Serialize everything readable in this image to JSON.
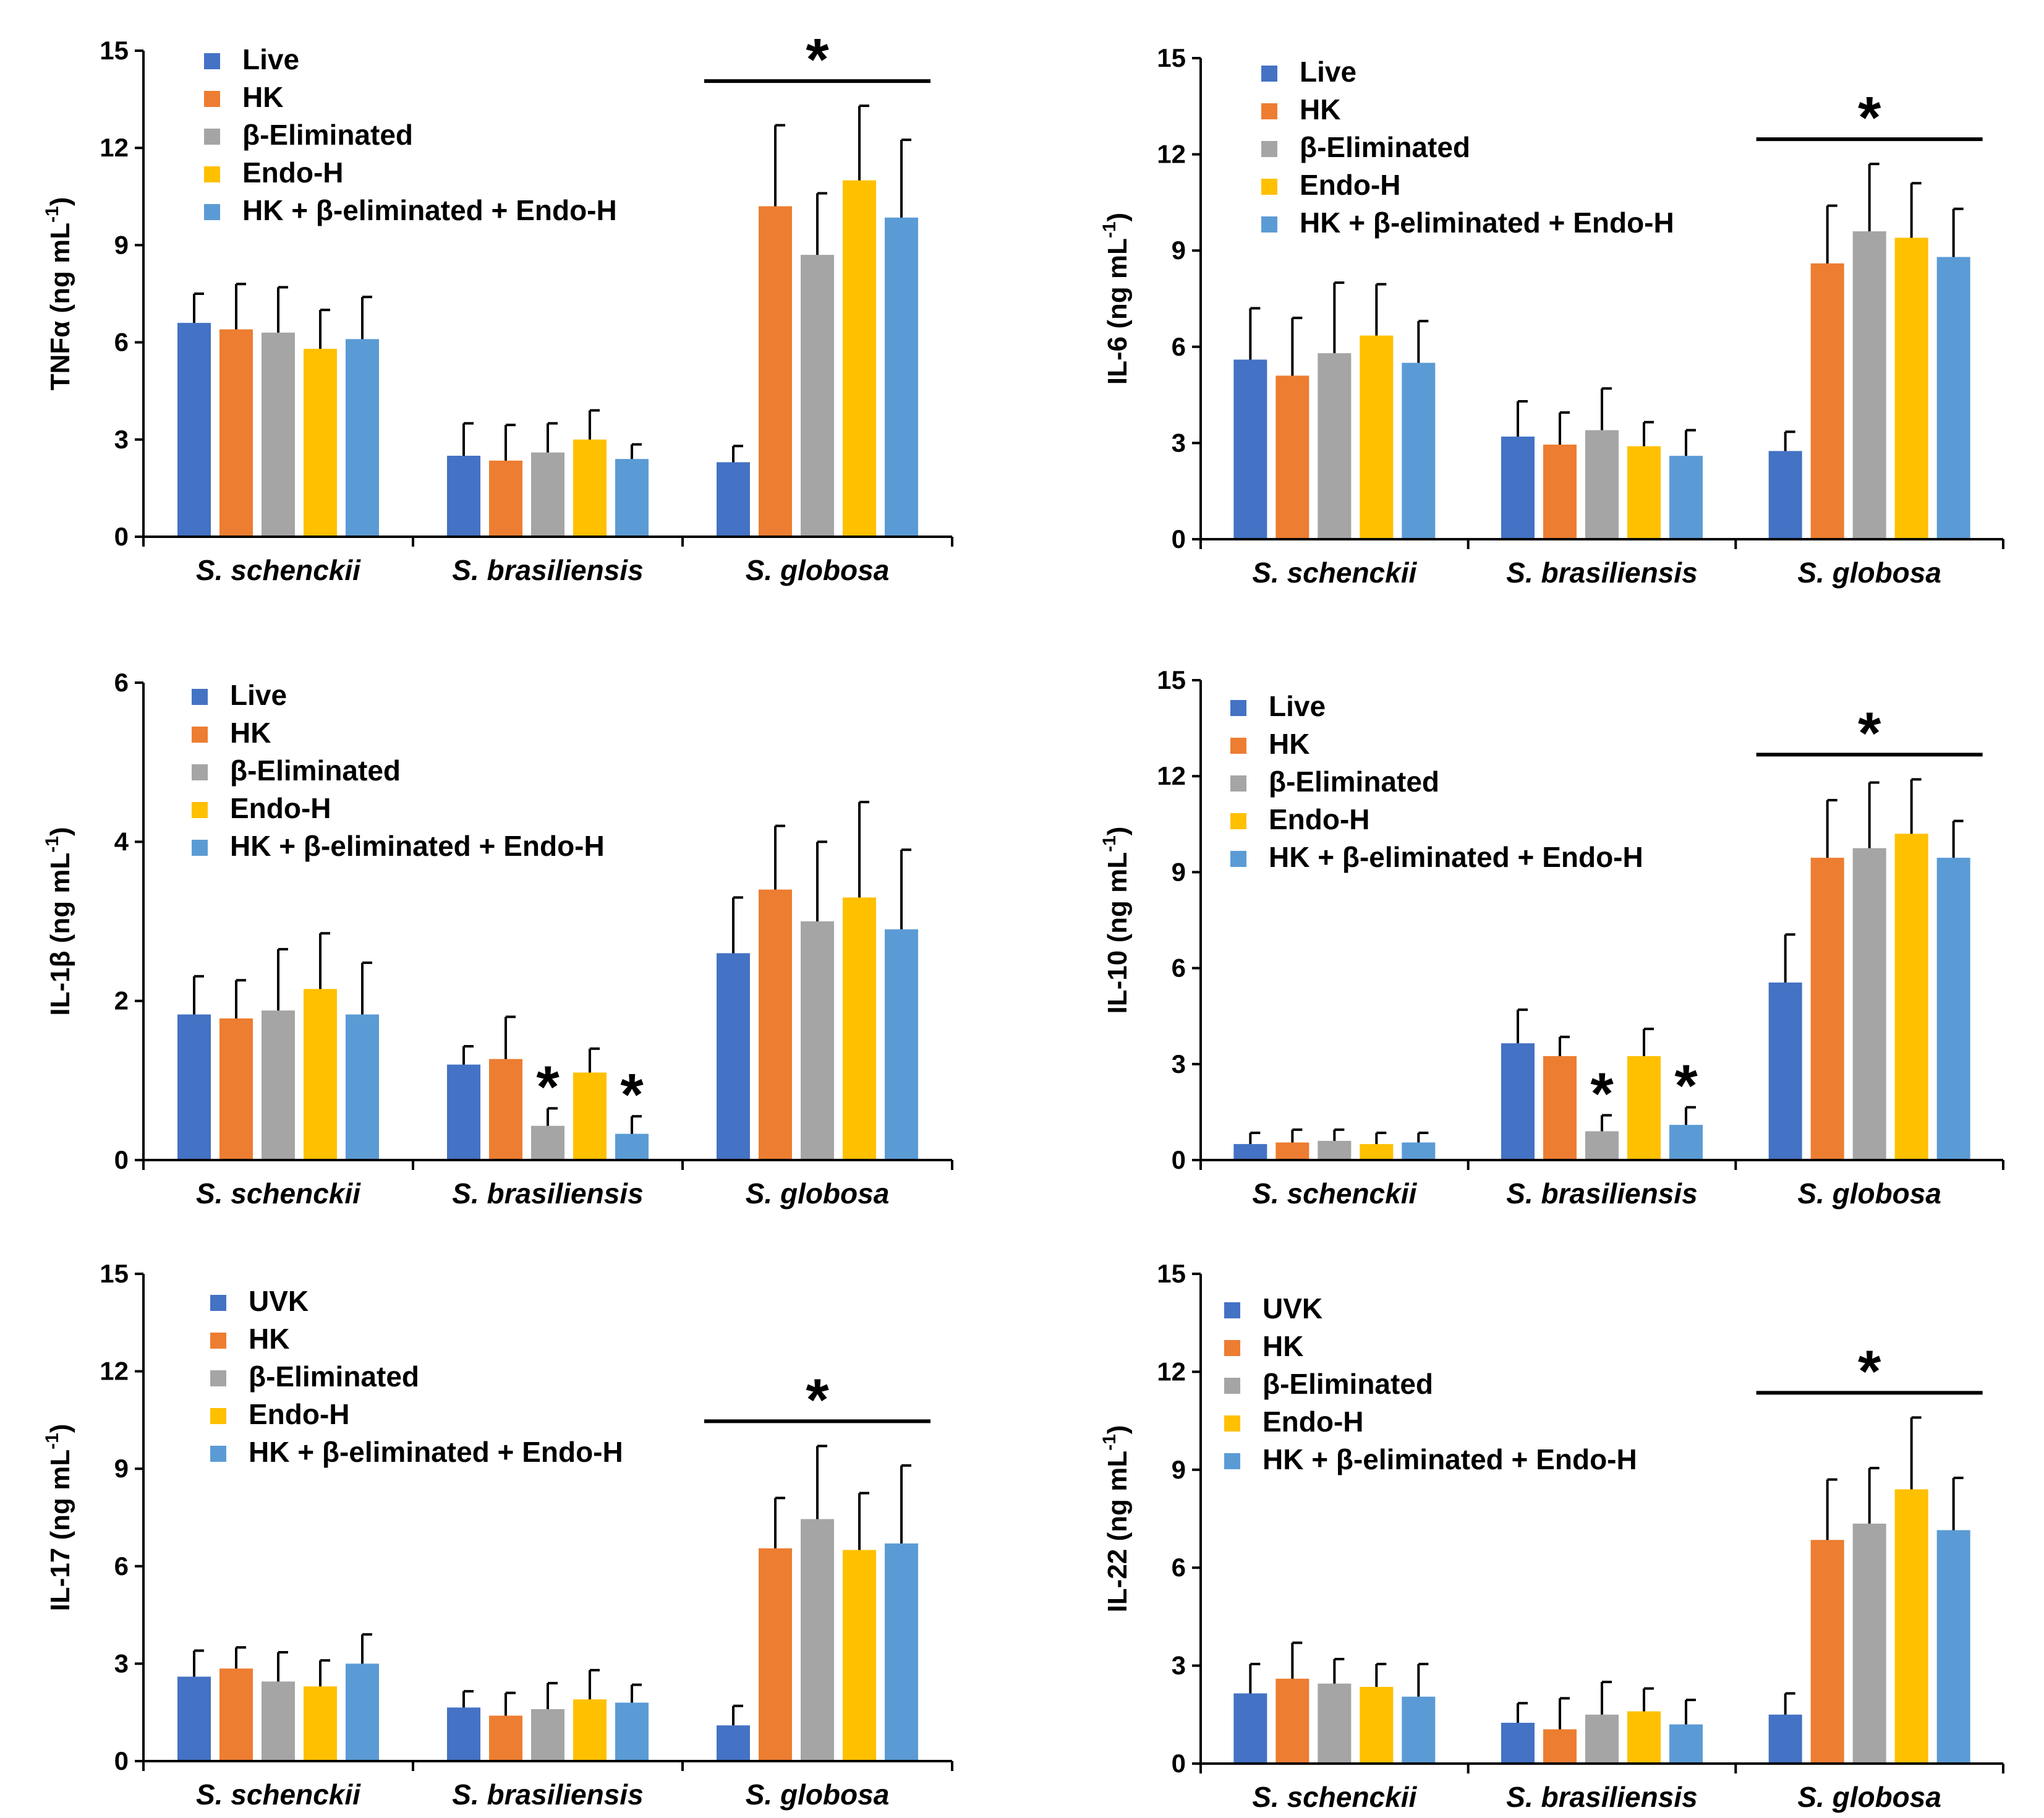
{
  "chart_data": [
    {
      "type": "bar",
      "ylabel": "TNFα  (ng mL-1)",
      "ylabel_main": "TNFα  (ng mL",
      "ylabel_sup": "-1",
      "ylabel_end": ")",
      "ylim": [
        0,
        15
      ],
      "yticks": [
        0,
        3,
        6,
        9,
        12,
        15
      ],
      "categories": [
        "S. schenckii",
        "S. brasiliensis",
        "S. globosa"
      ],
      "series": [
        {
          "name": "Live",
          "color": "#4472C4",
          "values": [
            6.6,
            2.5,
            2.3
          ],
          "errors": [
            0.9,
            1.0,
            0.5
          ]
        },
        {
          "name": "HK",
          "color": "#ED7D31",
          "values": [
            6.4,
            2.35,
            10.2
          ],
          "errors": [
            1.4,
            1.1,
            2.5
          ]
        },
        {
          "name": "β-Eliminated",
          "color": "#A5A5A5",
          "values": [
            6.3,
            2.6,
            8.7
          ],
          "errors": [
            1.4,
            0.9,
            1.9
          ]
        },
        {
          "name": "Endo-H",
          "color": "#FFC000",
          "values": [
            5.8,
            3.0,
            11.0
          ],
          "errors": [
            1.2,
            0.9,
            2.3
          ]
        },
        {
          "name": "HK + β-eliminated + Endo-H",
          "color": "#5B9BD5",
          "values": [
            6.1,
            2.4,
            9.85
          ],
          "errors": [
            1.3,
            0.45,
            2.4
          ]
        }
      ],
      "significance": [
        {
          "type": "bracket",
          "category": 2,
          "label": "*"
        }
      ]
    },
    {
      "type": "bar",
      "ylabel": "IL-6 (ng mL-1)",
      "ylabel_main": "IL-6 (ng mL",
      "ylabel_sup": "-1",
      "ylabel_end": ")",
      "ylim": [
        0,
        15
      ],
      "yticks": [
        0,
        3,
        6,
        9,
        12,
        15
      ],
      "categories": [
        "S. schenckii",
        "S. brasiliensis",
        "S. globosa"
      ],
      "series": [
        {
          "name": "Live",
          "color": "#4472C4",
          "values": [
            5.6,
            3.2,
            2.75
          ],
          "errors": [
            1.6,
            1.1,
            0.6
          ]
        },
        {
          "name": "HK",
          "color": "#ED7D31",
          "values": [
            5.1,
            2.95,
            8.6
          ],
          "errors": [
            1.8,
            1.0,
            1.8
          ]
        },
        {
          "name": "β-Eliminated",
          "color": "#A5A5A5",
          "values": [
            5.8,
            3.4,
            9.6
          ],
          "errors": [
            2.2,
            1.3,
            2.1
          ]
        },
        {
          "name": "Endo-H",
          "color": "#FFC000",
          "values": [
            6.35,
            2.9,
            9.4
          ],
          "errors": [
            1.6,
            0.75,
            1.7
          ]
        },
        {
          "name": "HK + β-eliminated + Endo-H",
          "color": "#5B9BD5",
          "values": [
            5.5,
            2.6,
            8.8
          ],
          "errors": [
            1.3,
            0.8,
            1.5
          ]
        }
      ],
      "significance": [
        {
          "type": "bracket",
          "category": 2,
          "label": "*"
        }
      ]
    },
    {
      "type": "bar",
      "ylabel": "IL-1β (ng mL-1)",
      "ylabel_main": "IL-1β (ng mL",
      "ylabel_sup": "-1",
      "ylabel_end": ")",
      "ylim": [
        0,
        6
      ],
      "yticks": [
        0,
        2,
        4,
        6
      ],
      "categories": [
        "S. schenckii",
        "S. brasiliensis",
        "S. globosa"
      ],
      "series": [
        {
          "name": "Live",
          "color": "#4472C4",
          "values": [
            1.83,
            1.2,
            2.6
          ],
          "errors": [
            0.48,
            0.23,
            0.7
          ]
        },
        {
          "name": "HK",
          "color": "#ED7D31",
          "values": [
            1.78,
            1.27,
            3.4
          ],
          "errors": [
            0.48,
            0.53,
            0.8
          ]
        },
        {
          "name": "β-Eliminated",
          "color": "#A5A5A5",
          "values": [
            1.88,
            0.43,
            3.0
          ],
          "errors": [
            0.77,
            0.22,
            1.0
          ]
        },
        {
          "name": "Endo-H",
          "color": "#FFC000",
          "values": [
            2.15,
            1.1,
            3.3
          ],
          "errors": [
            0.7,
            0.3,
            1.2
          ]
        },
        {
          "name": "HK + β-eliminated + Endo-H",
          "color": "#5B9BD5",
          "values": [
            1.83,
            0.33,
            2.9
          ],
          "errors": [
            0.65,
            0.22,
            1.0
          ]
        }
      ],
      "significance": [
        {
          "type": "bar_star",
          "category": 1,
          "series": 2,
          "label": "*"
        },
        {
          "type": "bar_star",
          "category": 1,
          "series": 4,
          "label": "*"
        }
      ]
    },
    {
      "type": "bar",
      "ylabel": "IL-10 (ng mL-1)",
      "ylabel_main": "IL-10 (ng mL",
      "ylabel_sup": "-1",
      "ylabel_end": ")",
      "ylim": [
        0,
        15
      ],
      "yticks": [
        0,
        3,
        6,
        9,
        12,
        15
      ],
      "categories": [
        "S. schenckii",
        "S. brasiliensis",
        "S. globosa"
      ],
      "series": [
        {
          "name": "Live",
          "color": "#4472C4",
          "values": [
            0.5,
            3.65,
            5.55
          ],
          "errors": [
            0.35,
            1.05,
            1.5
          ]
        },
        {
          "name": "HK",
          "color": "#ED7D31",
          "values": [
            0.55,
            3.25,
            9.45
          ],
          "errors": [
            0.4,
            0.6,
            1.8
          ]
        },
        {
          "name": "β-Eliminated",
          "color": "#A5A5A5",
          "values": [
            0.6,
            0.9,
            9.75
          ],
          "errors": [
            0.35,
            0.5,
            2.05
          ]
        },
        {
          "name": "Endo-H",
          "color": "#FFC000",
          "values": [
            0.5,
            3.25,
            10.2
          ],
          "errors": [
            0.35,
            0.85,
            1.7
          ]
        },
        {
          "name": "HK + β-eliminated + Endo-H",
          "color": "#5B9BD5",
          "values": [
            0.55,
            1.1,
            9.45
          ],
          "errors": [
            0.3,
            0.55,
            1.15
          ]
        }
      ],
      "significance": [
        {
          "type": "bar_star",
          "category": 1,
          "series": 2,
          "label": "*"
        },
        {
          "type": "bar_star",
          "category": 1,
          "series": 4,
          "label": "*"
        },
        {
          "type": "bracket",
          "category": 2,
          "label": "*"
        }
      ]
    },
    {
      "type": "bar",
      "ylabel": "IL-17 (ng mL-1)",
      "ylabel_main": "IL-17 (ng mL",
      "ylabel_sup": "-1",
      "ylabel_end": ")",
      "ylim": [
        0,
        15
      ],
      "yticks": [
        0,
        3,
        6,
        9,
        12,
        15
      ],
      "categories": [
        "S. schenckii",
        "S. brasiliensis",
        "S. globosa"
      ],
      "series": [
        {
          "name": "UVK",
          "color": "#4472C4",
          "values": [
            2.6,
            1.65,
            1.1
          ],
          "errors": [
            0.8,
            0.5,
            0.6
          ]
        },
        {
          "name": "HK",
          "color": "#ED7D31",
          "values": [
            2.85,
            1.4,
            6.55
          ],
          "errors": [
            0.65,
            0.7,
            1.55
          ]
        },
        {
          "name": "β-Eliminated",
          "color": "#A5A5A5",
          "values": [
            2.45,
            1.6,
            7.45
          ],
          "errors": [
            0.9,
            0.8,
            2.25
          ]
        },
        {
          "name": "Endo-H",
          "color": "#FFC000",
          "values": [
            2.3,
            1.9,
            6.5
          ],
          "errors": [
            0.8,
            0.9,
            1.75
          ]
        },
        {
          "name": "HK + β-eliminated + Endo-H",
          "color": "#5B9BD5",
          "values": [
            3.0,
            1.8,
            6.7
          ],
          "errors": [
            0.9,
            0.55,
            2.4
          ]
        }
      ],
      "significance": [
        {
          "type": "bracket",
          "category": 2,
          "label": "*"
        }
      ]
    },
    {
      "type": "bar",
      "ylabel": "IL-22 (ng mL-1)",
      "ylabel_main": "IL-22 (ng mL",
      "ylabel_sup": "-1",
      "ylabel_end": ")",
      "ylim": [
        0,
        15
      ],
      "yticks": [
        0,
        3,
        6,
        9,
        12,
        15
      ],
      "categories": [
        "S. schenckii",
        "S. brasiliensis",
        "S. globosa"
      ],
      "series": [
        {
          "name": "UVK",
          "color": "#4472C4",
          "values": [
            2.15,
            1.25,
            1.5
          ],
          "errors": [
            0.9,
            0.6,
            0.65
          ]
        },
        {
          "name": "HK",
          "color": "#ED7D31",
          "values": [
            2.6,
            1.05,
            6.85
          ],
          "errors": [
            1.1,
            0.95,
            1.85
          ]
        },
        {
          "name": "β-Eliminated",
          "color": "#A5A5A5",
          "values": [
            2.45,
            1.5,
            7.35
          ],
          "errors": [
            0.75,
            1.0,
            1.7
          ]
        },
        {
          "name": "Endo-H",
          "color": "#FFC000",
          "values": [
            2.35,
            1.6,
            8.4
          ],
          "errors": [
            0.7,
            0.7,
            2.2
          ]
        },
        {
          "name": "HK + β-eliminated + Endo-H",
          "color": "#5B9BD5",
          "values": [
            2.05,
            1.2,
            7.15
          ],
          "errors": [
            1.0,
            0.75,
            1.6
          ]
        }
      ],
      "significance": [
        {
          "type": "bracket",
          "category": 2,
          "label": "*"
        }
      ]
    }
  ]
}
